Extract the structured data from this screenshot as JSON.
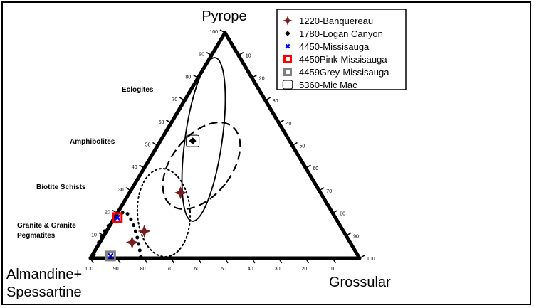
{
  "chart_data": {
    "type": "scatter",
    "subtype": "ternary",
    "apices": {
      "top": "Pyrope",
      "left": [
        "Almandine+",
        "Spessartine"
      ],
      "right": "Grossular"
    },
    "ticks": [
      10,
      20,
      30,
      40,
      50,
      60,
      70,
      80,
      90,
      100
    ],
    "fields": [
      {
        "label": "Eclogites",
        "line": "solid"
      },
      {
        "label": "Amphibolites",
        "line": "dashed"
      },
      {
        "label": "Biotite Schists",
        "line": "dotted"
      },
      {
        "label": [
          "Granite & Granite",
          "Pegmatites"
        ],
        "line": "bold-dotted"
      }
    ],
    "series": [
      {
        "name": "1220-Banquereau",
        "marker": "star4",
        "color": "#7b1c1c",
        "points": [
          {
            "pyrope": 29,
            "grossular": 19
          },
          {
            "pyrope": 12,
            "grossular": 14
          },
          {
            "pyrope": 7,
            "grossular": 12
          }
        ]
      },
      {
        "name": "1780-Logan Canyon",
        "marker": "diamond",
        "color": "#000000",
        "points": [
          {
            "pyrope": 52,
            "grossular": 12
          }
        ]
      },
      {
        "name": "4450-Missisauga",
        "marker": "x",
        "color": "#0000ff",
        "points": [
          {
            "pyrope": 18,
            "grossular": 1
          },
          {
            "pyrope": 1,
            "grossular": 7
          }
        ]
      },
      {
        "name": "4450Pink-Missisauga",
        "marker": "square-open",
        "color": "#ff0000",
        "points": [
          {
            "pyrope": 18,
            "grossular": 1
          }
        ]
      },
      {
        "name": "4459Grey-Missisauga",
        "marker": "square-open",
        "color": "#808080",
        "points": [
          {
            "pyrope": 1,
            "grossular": 7
          }
        ]
      },
      {
        "name": "5360-Mic Mac",
        "marker": "rounded-rect",
        "color": "#000000",
        "points": [
          {
            "pyrope": 52,
            "grossular": 12
          }
        ]
      }
    ]
  }
}
